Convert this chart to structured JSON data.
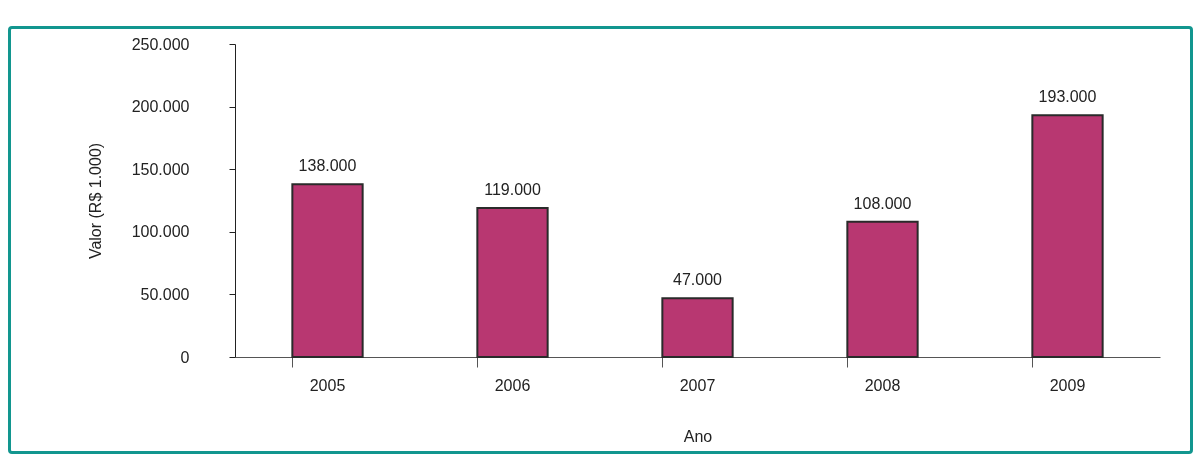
{
  "chart_data": {
    "type": "bar",
    "xlabel": "Ano",
    "ylabel": "Valor (R$ 1.000)",
    "categories": [
      "2005",
      "2006",
      "2007",
      "2008",
      "2009"
    ],
    "values": [
      138000,
      119000,
      47000,
      108000,
      193000
    ],
    "value_labels": [
      "138.000",
      "119.000",
      "47.000",
      "108.000",
      "193.000"
    ],
    "color": "#b83771",
    "ylim": [
      0,
      250000
    ],
    "yticks": [
      {
        "value": 0,
        "label": "0"
      },
      {
        "value": 50000,
        "label": "50.000"
      },
      {
        "value": 100000,
        "label": "100.000"
      },
      {
        "value": 150000,
        "label": "150.000"
      },
      {
        "value": 200000,
        "label": "200.000"
      },
      {
        "value": 250000,
        "label": "250.000"
      }
    ],
    "grid": false
  }
}
